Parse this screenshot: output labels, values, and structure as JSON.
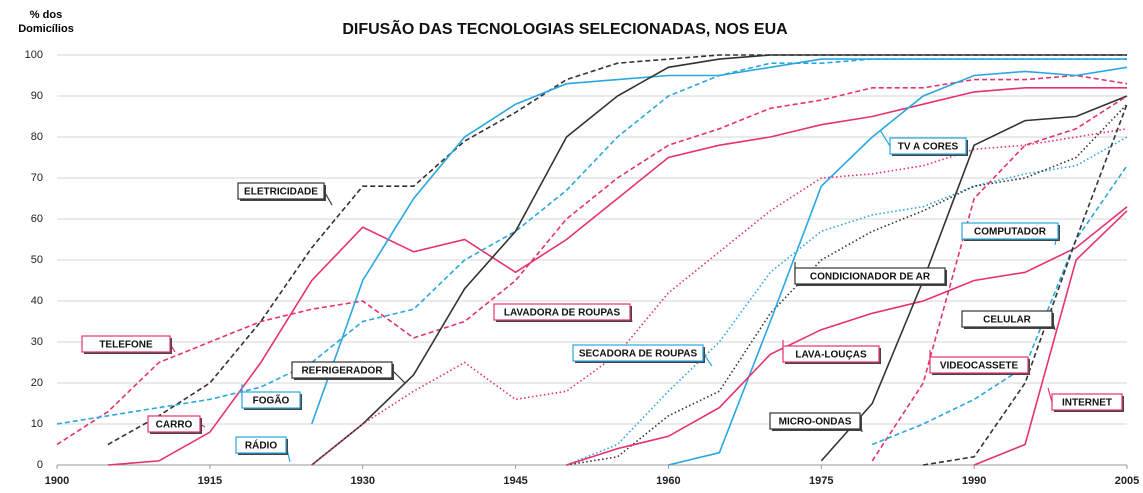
{
  "chart_data": {
    "type": "line",
    "title": "DIFUSÃO DAS TECNOLOGIAS SELECIONADAS, NOS EUA",
    "y_label": "% dos Domicílios",
    "x": [
      1900,
      1905,
      1910,
      1915,
      1920,
      1925,
      1930,
      1935,
      1940,
      1945,
      1950,
      1955,
      1960,
      1965,
      1970,
      1975,
      1980,
      1985,
      1990,
      1995,
      2000,
      2005
    ],
    "xlim": [
      1900,
      2005
    ],
    "xticks": [
      1900,
      1915,
      1930,
      1945,
      1960,
      1975,
      1990,
      2005
    ],
    "ylim": [
      0,
      100
    ],
    "yticks": [
      0,
      10,
      20,
      30,
      40,
      50,
      60,
      70,
      80,
      90,
      100
    ],
    "grid": true,
    "series": [
      {
        "name": "TELEFONE",
        "color": "#e6326e",
        "dash": "dashed",
        "values": [
          5,
          13,
          25,
          30,
          35,
          38,
          40,
          31,
          35,
          45,
          60,
          70,
          78,
          82,
          87,
          89,
          92,
          92,
          94,
          94,
          95,
          93
        ]
      },
      {
        "name": "ELETRICIDADE",
        "color": "#333333",
        "dash": "dashed",
        "values": [
          null,
          5,
          12,
          20,
          35,
          53,
          68,
          68,
          79,
          86,
          94,
          98,
          99,
          100,
          100,
          100,
          100,
          100,
          100,
          100,
          100,
          100
        ]
      },
      {
        "name": "CARRO",
        "color": "#e6326e",
        "dash": "solid",
        "values": [
          null,
          0,
          1,
          8,
          25,
          45,
          58,
          52,
          55,
          47,
          55,
          65,
          75,
          78,
          80,
          83,
          85,
          88,
          91,
          92,
          92,
          92
        ]
      },
      {
        "name": "FOGÃO",
        "color": "#2aa7df",
        "dash": "dashed",
        "values": [
          10,
          12,
          14,
          16,
          19,
          25,
          35,
          38,
          50,
          57,
          67,
          80,
          90,
          95,
          98,
          98,
          99,
          99,
          99,
          99,
          99,
          99
        ]
      },
      {
        "name": "RÁDIO",
        "color": "#2aa7df",
        "dash": "solid",
        "values": [
          null,
          null,
          null,
          null,
          null,
          10,
          45,
          65,
          80,
          88,
          93,
          94,
          95,
          95,
          97,
          99,
          99,
          99,
          99,
          99,
          99,
          99
        ]
      },
      {
        "name": "REFRIGERADOR",
        "color": "#333333",
        "dash": "solid",
        "values": [
          null,
          null,
          null,
          null,
          null,
          0,
          10,
          22,
          43,
          57,
          80,
          90,
          97,
          99,
          100,
          100,
          100,
          100,
          100,
          100,
          100,
          100
        ]
      },
      {
        "name": "LAVADORA DE ROUPAS",
        "color": "#e6326e",
        "dash": "dotted",
        "values": [
          null,
          null,
          null,
          null,
          null,
          0,
          10,
          18,
          25,
          16,
          18,
          27,
          42,
          52,
          62,
          70,
          71,
          73,
          77,
          78,
          80,
          82
        ]
      },
      {
        "name": "SECADORA DE ROUPAS",
        "color": "#2aa7df",
        "dash": "dotted",
        "values": [
          null,
          null,
          null,
          null,
          null,
          null,
          null,
          null,
          null,
          null,
          0,
          5,
          18,
          30,
          47,
          57,
          61,
          63,
          68,
          71,
          73,
          80
        ]
      },
      {
        "name": "CONDICIONADOR DE AR",
        "color": "#333333",
        "dash": "dotted",
        "values": [
          null,
          null,
          null,
          null,
          null,
          null,
          null,
          null,
          null,
          null,
          0,
          2,
          12,
          18,
          37,
          50,
          57,
          62,
          68,
          70,
          75,
          88
        ]
      },
      {
        "name": "TV A CORES",
        "color": "#2aa7df",
        "dash": "solid",
        "values": [
          null,
          null,
          null,
          null,
          null,
          null,
          null,
          null,
          null,
          null,
          null,
          null,
          0,
          3,
          35,
          68,
          80,
          90,
          95,
          96,
          95,
          97
        ]
      },
      {
        "name": "LAVA-LOUÇAS",
        "color": "#e6326e",
        "dash": "solid",
        "values": [
          null,
          null,
          null,
          null,
          null,
          null,
          null,
          null,
          null,
          null,
          0,
          4,
          7,
          14,
          27,
          33,
          37,
          40,
          45,
          47,
          53,
          63
        ]
      },
      {
        "name": "MICRO-ONDAS",
        "color": "#333333",
        "dash": "solid",
        "values": [
          null,
          null,
          null,
          null,
          null,
          null,
          null,
          null,
          null,
          null,
          null,
          null,
          null,
          null,
          null,
          1,
          15,
          45,
          78,
          84,
          85,
          90
        ]
      },
      {
        "name": "VIDEOCASSETE",
        "color": "#e6326e",
        "dash": "dashed",
        "values": [
          null,
          null,
          null,
          null,
          null,
          null,
          null,
          null,
          null,
          null,
          null,
          null,
          null,
          null,
          null,
          null,
          1,
          20,
          65,
          78,
          82,
          90
        ]
      },
      {
        "name": "COMPUTADOR",
        "color": "#2aa7df",
        "dash": "dashed",
        "values": [
          null,
          null,
          null,
          null,
          null,
          null,
          null,
          null,
          null,
          null,
          null,
          null,
          null,
          null,
          null,
          null,
          5,
          10,
          16,
          24,
          55,
          73
        ]
      },
      {
        "name": "CELULAR",
        "color": "#333333",
        "dash": "dashed",
        "values": [
          null,
          null,
          null,
          null,
          null,
          null,
          null,
          null,
          null,
          null,
          null,
          null,
          null,
          null,
          null,
          null,
          null,
          0,
          2,
          20,
          55,
          88
        ]
      },
      {
        "name": "INTERNET",
        "color": "#e6326e",
        "dash": "solid",
        "values": [
          null,
          null,
          null,
          null,
          null,
          null,
          null,
          null,
          null,
          null,
          null,
          null,
          null,
          null,
          null,
          null,
          null,
          null,
          0,
          5,
          50,
          62
        ]
      }
    ]
  }
}
